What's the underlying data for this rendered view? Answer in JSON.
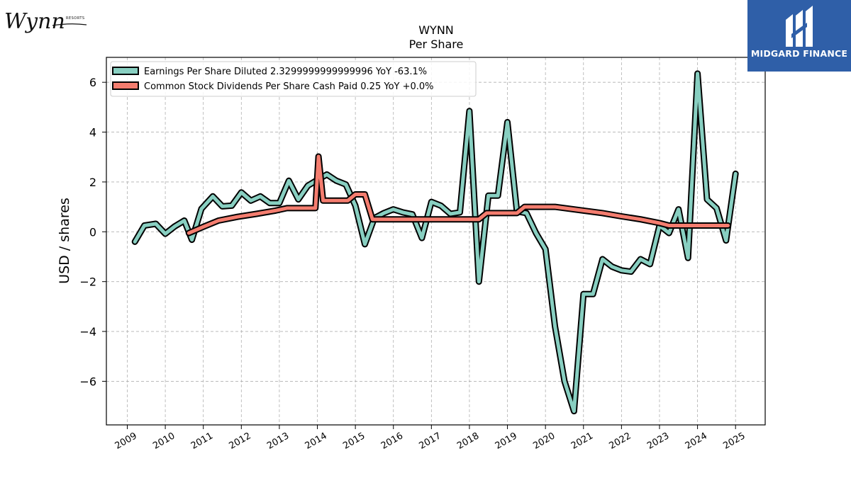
{
  "brand": {
    "wynn_logo_text": "Wynn",
    "wynn_logo_small": "RESORTS",
    "midgard_name": "MIDGARD FINANCE",
    "midgard_bg": "#2f5fa8"
  },
  "chart_data": {
    "type": "line",
    "title": "WYNN",
    "subtitle": "Per  Share",
    "xlabel": "",
    "ylabel": "USD / shares",
    "x_ticks": [
      "2009",
      "2010",
      "2011",
      "2012",
      "2013",
      "2014",
      "2015",
      "2016",
      "2017",
      "2018",
      "2019",
      "2020",
      "2021",
      "2022",
      "2023",
      "2024",
      "2025"
    ],
    "y_ticks": [
      -6,
      -4,
      -2,
      0,
      2,
      4,
      6
    ],
    "y_tick_labels": [
      "−6",
      "−4",
      "−2",
      "0",
      "2",
      "4",
      "6"
    ],
    "xlim": [
      2008.45,
      2025.78
    ],
    "ylim": [
      -7.75,
      7.0
    ],
    "grid": true,
    "legend_position": "top-left",
    "series": [
      {
        "name": "Earnings Per Share Diluted  2.3299999999999996 YoY -63.1%",
        "color": "#88cfc1",
        "points": [
          [
            2009.2,
            -0.4
          ],
          [
            2009.45,
            0.25
          ],
          [
            2009.75,
            0.32
          ],
          [
            2010.0,
            -0.08
          ],
          [
            2010.25,
            0.22
          ],
          [
            2010.5,
            0.45
          ],
          [
            2010.7,
            -0.32
          ],
          [
            2010.95,
            0.92
          ],
          [
            2011.25,
            1.42
          ],
          [
            2011.5,
            1.02
          ],
          [
            2011.75,
            1.05
          ],
          [
            2012.0,
            1.58
          ],
          [
            2012.25,
            1.25
          ],
          [
            2012.5,
            1.42
          ],
          [
            2012.75,
            1.15
          ],
          [
            2013.0,
            1.15
          ],
          [
            2013.25,
            2.05
          ],
          [
            2013.5,
            1.3
          ],
          [
            2013.75,
            1.85
          ],
          [
            2014.0,
            2.08
          ],
          [
            2014.25,
            2.3
          ],
          [
            2014.5,
            2.05
          ],
          [
            2014.75,
            1.9
          ],
          [
            2015.0,
            1.05
          ],
          [
            2015.25,
            -0.5
          ],
          [
            2015.5,
            0.55
          ],
          [
            2015.75,
            0.75
          ],
          [
            2016.0,
            0.9
          ],
          [
            2016.25,
            0.78
          ],
          [
            2016.5,
            0.7
          ],
          [
            2016.75,
            -0.25
          ],
          [
            2017.0,
            1.2
          ],
          [
            2017.25,
            1.05
          ],
          [
            2017.5,
            0.72
          ],
          [
            2017.75,
            0.78
          ],
          [
            2018.0,
            4.85
          ],
          [
            2018.25,
            -2.0
          ],
          [
            2018.5,
            1.45
          ],
          [
            2018.75,
            1.45
          ],
          [
            2019.0,
            4.4
          ],
          [
            2019.25,
            0.82
          ],
          [
            2019.5,
            0.75
          ],
          [
            2019.75,
            -0.05
          ],
          [
            2020.0,
            -0.7
          ],
          [
            2020.25,
            -3.8
          ],
          [
            2020.5,
            -6.0
          ],
          [
            2020.75,
            -7.2
          ],
          [
            2021.0,
            -2.5
          ],
          [
            2021.25,
            -2.5
          ],
          [
            2021.5,
            -1.1
          ],
          [
            2021.75,
            -1.4
          ],
          [
            2022.0,
            -1.55
          ],
          [
            2022.25,
            -1.6
          ],
          [
            2022.5,
            -1.1
          ],
          [
            2022.75,
            -1.3
          ],
          [
            2023.0,
            0.25
          ],
          [
            2023.25,
            -0.05
          ],
          [
            2023.5,
            0.9
          ],
          [
            2023.75,
            -1.05
          ],
          [
            2024.0,
            6.35
          ],
          [
            2024.25,
            1.3
          ],
          [
            2024.5,
            0.95
          ],
          [
            2024.75,
            -0.35
          ],
          [
            2025.0,
            2.33
          ]
        ]
      },
      {
        "name": "Common Stock Dividends Per Share Cash Paid  0.25 YoY +0.0%",
        "color": "#f47d6f",
        "points": [
          [
            2010.62,
            -0.05
          ],
          [
            2011.0,
            0.2
          ],
          [
            2011.4,
            0.45
          ],
          [
            2011.9,
            0.6
          ],
          [
            2012.4,
            0.72
          ],
          [
            2012.9,
            0.85
          ],
          [
            2013.2,
            0.95
          ],
          [
            2013.5,
            0.95
          ],
          [
            2013.75,
            0.95
          ],
          [
            2013.95,
            0.95
          ],
          [
            2014.03,
            3.02
          ],
          [
            2014.15,
            1.25
          ],
          [
            2014.5,
            1.25
          ],
          [
            2014.8,
            1.25
          ],
          [
            2015.0,
            1.5
          ],
          [
            2015.25,
            1.5
          ],
          [
            2015.45,
            0.5
          ],
          [
            2015.75,
            0.5
          ],
          [
            2016.5,
            0.5
          ],
          [
            2017.0,
            0.5
          ],
          [
            2017.5,
            0.5
          ],
          [
            2018.0,
            0.5
          ],
          [
            2018.25,
            0.5
          ],
          [
            2018.45,
            0.75
          ],
          [
            2018.8,
            0.75
          ],
          [
            2019.25,
            0.75
          ],
          [
            2019.45,
            1.0
          ],
          [
            2019.8,
            1.0
          ],
          [
            2020.25,
            1.0
          ],
          [
            2021.0,
            0.85
          ],
          [
            2021.5,
            0.75
          ],
          [
            2022.0,
            0.62
          ],
          [
            2022.5,
            0.5
          ],
          [
            2023.0,
            0.35
          ],
          [
            2023.25,
            0.25
          ],
          [
            2023.75,
            0.25
          ],
          [
            2024.25,
            0.25
          ],
          [
            2024.8,
            0.25
          ]
        ]
      }
    ]
  }
}
